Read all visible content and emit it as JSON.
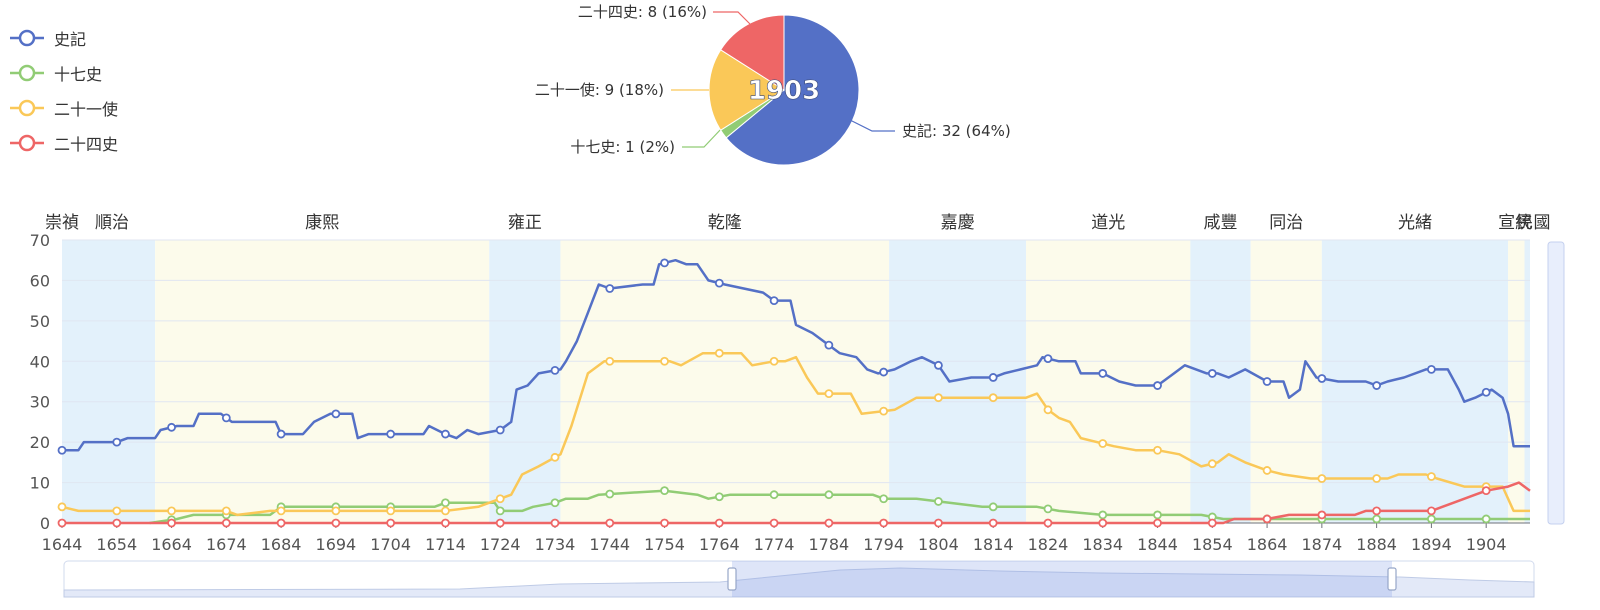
{
  "colors": {
    "史記": "#5470c6",
    "十七史": "#91cc75",
    "二十一使": "#fac858",
    "二十四史": "#ee6666"
  },
  "legend": [
    {
      "name": "史記",
      "color": "#5470c6"
    },
    {
      "name": "十七史",
      "color": "#91cc75"
    },
    {
      "name": "二十一使",
      "color": "#fac858"
    },
    {
      "name": "二十四史",
      "color": "#ee6666"
    }
  ],
  "chart_data": [
    {
      "type": "pie",
      "center_label": "1903",
      "slices": [
        {
          "name": "史記",
          "value": 32,
          "label": "史記: 32 (64%)"
        },
        {
          "name": "十七史",
          "value": 1,
          "label": "十七史: 1 (2%)"
        },
        {
          "name": "二十一使",
          "value": 9,
          "label": "二十一使: 9 (18%)"
        },
        {
          "name": "二十四史",
          "value": 8,
          "label": "二十四史: 8 (16%)"
        }
      ]
    },
    {
      "type": "line",
      "xlim": [
        1644,
        1912
      ],
      "ylim": [
        0,
        70
      ],
      "x_ticks": [
        1644,
        1654,
        1664,
        1674,
        1684,
        1694,
        1704,
        1714,
        1724,
        1734,
        1744,
        1754,
        1764,
        1774,
        1784,
        1794,
        1804,
        1814,
        1824,
        1834,
        1844,
        1854,
        1864,
        1874,
        1884,
        1894,
        1904
      ],
      "y_ticks": [
        0,
        10,
        20,
        30,
        40,
        50,
        60,
        70
      ],
      "eras": [
        {
          "name": "崇禎",
          "start": 1644,
          "end": 1644
        },
        {
          "name": "順治",
          "start": 1644,
          "end": 1661
        },
        {
          "name": "康熙",
          "start": 1661,
          "end": 1722
        },
        {
          "name": "雍正",
          "start": 1722,
          "end": 1735
        },
        {
          "name": "乾隆",
          "start": 1735,
          "end": 1795
        },
        {
          "name": "嘉慶",
          "start": 1795,
          "end": 1820
        },
        {
          "name": "道光",
          "start": 1820,
          "end": 1850
        },
        {
          "name": "咸豐",
          "start": 1850,
          "end": 1861
        },
        {
          "name": "同治",
          "start": 1861,
          "end": 1874
        },
        {
          "name": "光緒",
          "start": 1874,
          "end": 1908
        },
        {
          "name": "宣統",
          "start": 1908,
          "end": 1911
        },
        {
          "name": "民國",
          "start": 1911,
          "end": 1912
        }
      ],
      "series": [
        {
          "name": "史記",
          "points": [
            [
              1644,
              18
            ],
            [
              1647,
              18
            ],
            [
              1648,
              20
            ],
            [
              1654,
              20
            ],
            [
              1656,
              21
            ],
            [
              1661,
              21
            ],
            [
              1662,
              23
            ],
            [
              1665,
              24
            ],
            [
              1668,
              24
            ],
            [
              1669,
              27
            ],
            [
              1673,
              27
            ],
            [
              1675,
              25
            ],
            [
              1683,
              25
            ],
            [
              1684,
              22
            ],
            [
              1688,
              22
            ],
            [
              1690,
              25
            ],
            [
              1693,
              27
            ],
            [
              1697,
              27
            ],
            [
              1698,
              21
            ],
            [
              1700,
              22
            ],
            [
              1710,
              22
            ],
            [
              1711,
              24
            ],
            [
              1714,
              22
            ],
            [
              1716,
              21
            ],
            [
              1718,
              23
            ],
            [
              1720,
              22
            ],
            [
              1724,
              23
            ],
            [
              1726,
              25
            ],
            [
              1727,
              33
            ],
            [
              1729,
              34
            ],
            [
              1731,
              37
            ],
            [
              1735,
              38
            ],
            [
              1736,
              40
            ],
            [
              1738,
              45
            ],
            [
              1740,
              52
            ],
            [
              1742,
              59
            ],
            [
              1744,
              58
            ],
            [
              1750,
              59
            ],
            [
              1752,
              59
            ],
            [
              1753,
              64
            ],
            [
              1756,
              65
            ],
            [
              1758,
              64
            ],
            [
              1760,
              64
            ],
            [
              1762,
              60
            ],
            [
              1765,
              59
            ],
            [
              1772,
              57
            ],
            [
              1774,
              55
            ],
            [
              1777,
              55
            ],
            [
              1778,
              49
            ],
            [
              1781,
              47
            ],
            [
              1783,
              45
            ],
            [
              1786,
              42
            ],
            [
              1789,
              41
            ],
            [
              1791,
              38
            ],
            [
              1793,
              37
            ],
            [
              1796,
              38
            ],
            [
              1799,
              40
            ],
            [
              1801,
              41
            ],
            [
              1804,
              39
            ],
            [
              1806,
              35
            ],
            [
              1810,
              36
            ],
            [
              1814,
              36
            ],
            [
              1816,
              37
            ],
            [
              1819,
              38
            ],
            [
              1822,
              39
            ],
            [
              1823,
              41
            ],
            [
              1826,
              40
            ],
            [
              1829,
              40
            ],
            [
              1830,
              37
            ],
            [
              1834,
              37
            ],
            [
              1837,
              35
            ],
            [
              1840,
              34
            ],
            [
              1844,
              34
            ],
            [
              1847,
              37
            ],
            [
              1849,
              39
            ],
            [
              1853,
              37
            ],
            [
              1855,
              37
            ],
            [
              1857,
              36
            ],
            [
              1860,
              38
            ],
            [
              1864,
              35
            ],
            [
              1867,
              35
            ],
            [
              1868,
              31
            ],
            [
              1870,
              33
            ],
            [
              1871,
              40
            ],
            [
              1873,
              36
            ],
            [
              1877,
              35
            ],
            [
              1882,
              35
            ],
            [
              1884,
              34
            ],
            [
              1886,
              35
            ],
            [
              1889,
              36
            ],
            [
              1893,
              38
            ],
            [
              1897,
              38
            ],
            [
              1899,
              33
            ],
            [
              1900,
              30
            ],
            [
              1902,
              31
            ],
            [
              1905,
              33
            ],
            [
              1907,
              31
            ],
            [
              1908,
              27
            ],
            [
              1909,
              19
            ],
            [
              1912,
              19
            ]
          ]
        },
        {
          "name": "十七史",
          "points": [
            [
              1660,
              0
            ],
            [
              1665,
              1
            ],
            [
              1668,
              2
            ],
            [
              1682,
              2
            ],
            [
              1684,
              4
            ],
            [
              1712,
              4
            ],
            [
              1714,
              5
            ],
            [
              1723,
              5
            ],
            [
              1724,
              3
            ],
            [
              1728,
              3
            ],
            [
              1730,
              4
            ],
            [
              1734,
              5
            ],
            [
              1736,
              6
            ],
            [
              1740,
              6
            ],
            [
              1742,
              7
            ],
            [
              1754,
              8
            ],
            [
              1760,
              7
            ],
            [
              1762,
              6
            ],
            [
              1766,
              7
            ],
            [
              1792,
              7
            ],
            [
              1794,
              6
            ],
            [
              1800,
              6
            ],
            [
              1806,
              5
            ],
            [
              1812,
              4
            ],
            [
              1818,
              4
            ],
            [
              1822,
              4
            ],
            [
              1826,
              3
            ],
            [
              1834,
              2
            ],
            [
              1844,
              2
            ],
            [
              1852,
              2
            ],
            [
              1856,
              1
            ],
            [
              1912,
              1
            ]
          ]
        },
        {
          "name": "二十一使",
          "points": [
            [
              1644,
              4
            ],
            [
              1647,
              3
            ],
            [
              1674,
              3
            ],
            [
              1676,
              2
            ],
            [
              1682,
              3
            ],
            [
              1704,
              3
            ],
            [
              1714,
              3
            ],
            [
              1720,
              4
            ],
            [
              1724,
              6
            ],
            [
              1726,
              7
            ],
            [
              1728,
              12
            ],
            [
              1731,
              14
            ],
            [
              1735,
              17
            ],
            [
              1737,
              24
            ],
            [
              1740,
              37
            ],
            [
              1743,
              40
            ],
            [
              1755,
              40
            ],
            [
              1757,
              39
            ],
            [
              1761,
              42
            ],
            [
              1768,
              42
            ],
            [
              1770,
              39
            ],
            [
              1774,
              40
            ],
            [
              1776,
              40
            ],
            [
              1778,
              41
            ],
            [
              1780,
              36
            ],
            [
              1782,
              32
            ],
            [
              1788,
              32
            ],
            [
              1790,
              27
            ],
            [
              1796,
              28
            ],
            [
              1800,
              31
            ],
            [
              1805,
              31
            ],
            [
              1820,
              31
            ],
            [
              1822,
              32
            ],
            [
              1824,
              28
            ],
            [
              1826,
              26
            ],
            [
              1828,
              25
            ],
            [
              1830,
              21
            ],
            [
              1836,
              19
            ],
            [
              1840,
              18
            ],
            [
              1844,
              18
            ],
            [
              1848,
              17
            ],
            [
              1852,
              14
            ],
            [
              1855,
              15
            ],
            [
              1857,
              17
            ],
            [
              1860,
              15
            ],
            [
              1864,
              13
            ],
            [
              1867,
              12
            ],
            [
              1872,
              11
            ],
            [
              1886,
              11
            ],
            [
              1888,
              12
            ],
            [
              1893,
              12
            ],
            [
              1895,
              11
            ],
            [
              1900,
              9
            ],
            [
              1907,
              9
            ],
            [
              1909,
              3
            ],
            [
              1912,
              3
            ]
          ]
        },
        {
          "name": "二十四史",
          "points": [
            [
              1644,
              0
            ],
            [
              1856,
              0
            ],
            [
              1858,
              1
            ],
            [
              1864,
              1
            ],
            [
              1868,
              2
            ],
            [
              1880,
              2
            ],
            [
              1882,
              3
            ],
            [
              1894,
              3
            ],
            [
              1896,
              4
            ],
            [
              1898,
              5
            ],
            [
              1902,
              7
            ],
            [
              1904,
              8
            ],
            [
              1908,
              9
            ],
            [
              1910,
              10
            ],
            [
              1912,
              8
            ]
          ]
        }
      ]
    }
  ]
}
